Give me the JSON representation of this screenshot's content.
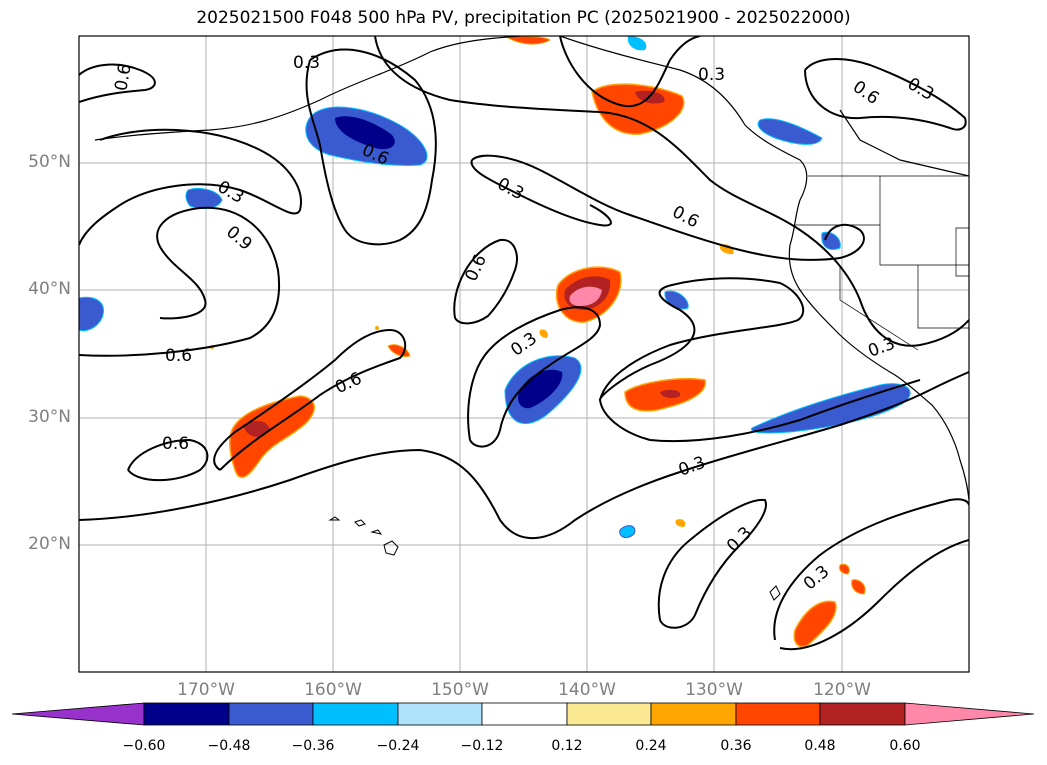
{
  "title": "2025021500 F048 500 hPa PV, precipitation PC (2025021900 - 2025022000)",
  "map": {
    "lat_labels": [
      "50°N",
      "40°N",
      "30°N",
      "20°N"
    ],
    "lon_labels": [
      "170°W",
      "160°W",
      "150°W",
      "140°W",
      "130°W",
      "120°W"
    ],
    "contour_labels": [
      "0.3",
      "0.6",
      "0.9"
    ]
  },
  "colorbar": {
    "ticks": [
      "−0.60",
      "−0.48",
      "−0.36",
      "−0.24",
      "−0.12",
      "0.12",
      "0.24",
      "0.36",
      "0.48",
      "0.60"
    ],
    "colors": [
      "#9932cc",
      "#00008b",
      "#3a5bcf",
      "#00bfff",
      "#aee2fb",
      "#ffffff",
      "#fbe892",
      "#ffa500",
      "#ff4500",
      "#b22222",
      "#ff88aa"
    ]
  }
}
